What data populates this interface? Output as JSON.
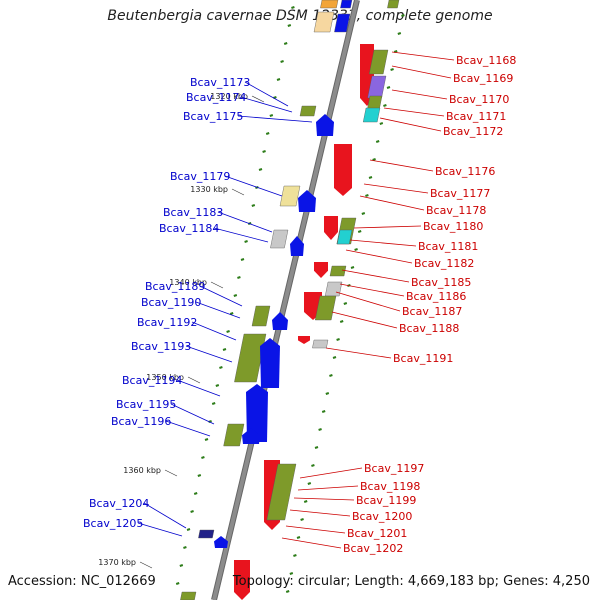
{
  "title": "Beutenbergia cavernae DSM 12333, complete genome",
  "footer": {
    "accession": "Accession: NC_012669",
    "info": "Topology: circular; Length: 4,669,183 bp; Genes: 4,250"
  },
  "colors": {
    "backbone": "#8c8c8c",
    "forward_label": "#0000cc",
    "reverse_label": "#cc0000",
    "tick": "#2e7d1a"
  },
  "kbp_marks": [
    "1320 kbp",
    "1330 kbp",
    "1340 kbp",
    "1350 kbp",
    "1360 kbp",
    "1370 kbp"
  ],
  "left_labels": [
    "Bcav_1173",
    "Bcav_1174",
    "Bcav_1175",
    "Bcav_1179",
    "Bcav_1183",
    "Bcav_1184",
    "Bcav_1189",
    "Bcav_1190",
    "Bcav_1192",
    "Bcav_1193",
    "Bcav_1194",
    "Bcav_1195",
    "Bcav_1196",
    "Bcav_1204",
    "Bcav_1205"
  ],
  "right_labels": [
    "Bcav_1168",
    "Bcav_1169",
    "Bcav_1170",
    "Bcav_1171",
    "Bcav_1172",
    "Bcav_1176",
    "Bcav_1177",
    "Bcav_1178",
    "Bcav_1180",
    "Bcav_1181",
    "Bcav_1182",
    "Bcav_1185",
    "Bcav_1186",
    "Bcav_1187",
    "Bcav_1188",
    "Bcav_1191",
    "Bcav_1197",
    "Bcav_1198",
    "Bcav_1199",
    "Bcav_1200",
    "Bcav_1201",
    "Bcav_1202"
  ]
}
